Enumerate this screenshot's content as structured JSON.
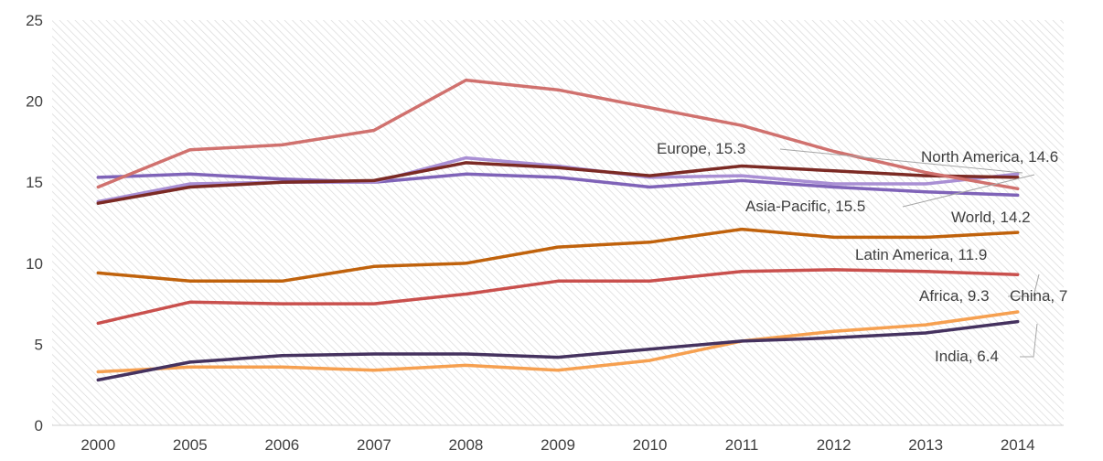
{
  "chart_data": {
    "type": "line",
    "title": "",
    "xlabel": "",
    "ylabel": "",
    "categories": [
      "2000",
      "2005",
      "2006",
      "2007",
      "2008",
      "2009",
      "2010",
      "2011",
      "2012",
      "2013",
      "2014"
    ],
    "ylim": [
      0,
      25
    ],
    "yticks": [
      "0",
      "5",
      "10",
      "15",
      "20",
      "25"
    ],
    "grid": "diagonal hatch background",
    "legend": "none (inline end-point data labels)",
    "series": [
      {
        "name": "North America",
        "color": "#d0716e",
        "values": [
          14.7,
          17.0,
          17.3,
          18.2,
          21.3,
          20.7,
          19.6,
          18.5,
          16.9,
          15.6,
          14.6
        ],
        "label": "North America, 14.6"
      },
      {
        "name": "Europe",
        "color": "#7b2a24",
        "values": [
          13.7,
          14.7,
          15.0,
          15.1,
          16.2,
          15.9,
          15.4,
          16.0,
          15.7,
          15.4,
          15.3
        ],
        "label": "Europe, 15.3"
      },
      {
        "name": "Asia-Pacific",
        "color": "#a98fd4",
        "values": [
          13.8,
          14.9,
          15.0,
          15.0,
          16.5,
          16.0,
          15.3,
          15.4,
          14.9,
          14.9,
          15.5
        ],
        "label": "Asia-Pacific, 15.5"
      },
      {
        "name": "World",
        "color": "#7f63b8",
        "values": [
          15.3,
          15.5,
          15.2,
          15.0,
          15.5,
          15.3,
          14.7,
          15.1,
          14.7,
          14.4,
          14.2
        ],
        "label": "World, 14.2"
      },
      {
        "name": "Latin America",
        "color": "#c0620c",
        "values": [
          9.4,
          8.9,
          8.9,
          9.8,
          10.0,
          11.0,
          11.3,
          12.1,
          11.6,
          11.6,
          11.9
        ],
        "label": "Latin America, 11.9"
      },
      {
        "name": "Africa",
        "color": "#c9504d",
        "values": [
          6.3,
          7.6,
          7.5,
          7.5,
          8.1,
          8.9,
          8.9,
          9.5,
          9.6,
          9.5,
          9.3
        ],
        "label": "Africa, 9.3"
      },
      {
        "name": "China",
        "color": "#f6a050",
        "values": [
          3.3,
          3.6,
          3.6,
          3.4,
          3.7,
          3.4,
          4.0,
          5.2,
          5.8,
          6.2,
          7.0
        ],
        "label": "China, 7"
      },
      {
        "name": "India",
        "color": "#45325f",
        "values": [
          2.8,
          3.9,
          4.3,
          4.4,
          4.4,
          4.2,
          4.7,
          5.2,
          5.4,
          5.7,
          6.4
        ],
        "label": "India, 6.4"
      }
    ]
  }
}
